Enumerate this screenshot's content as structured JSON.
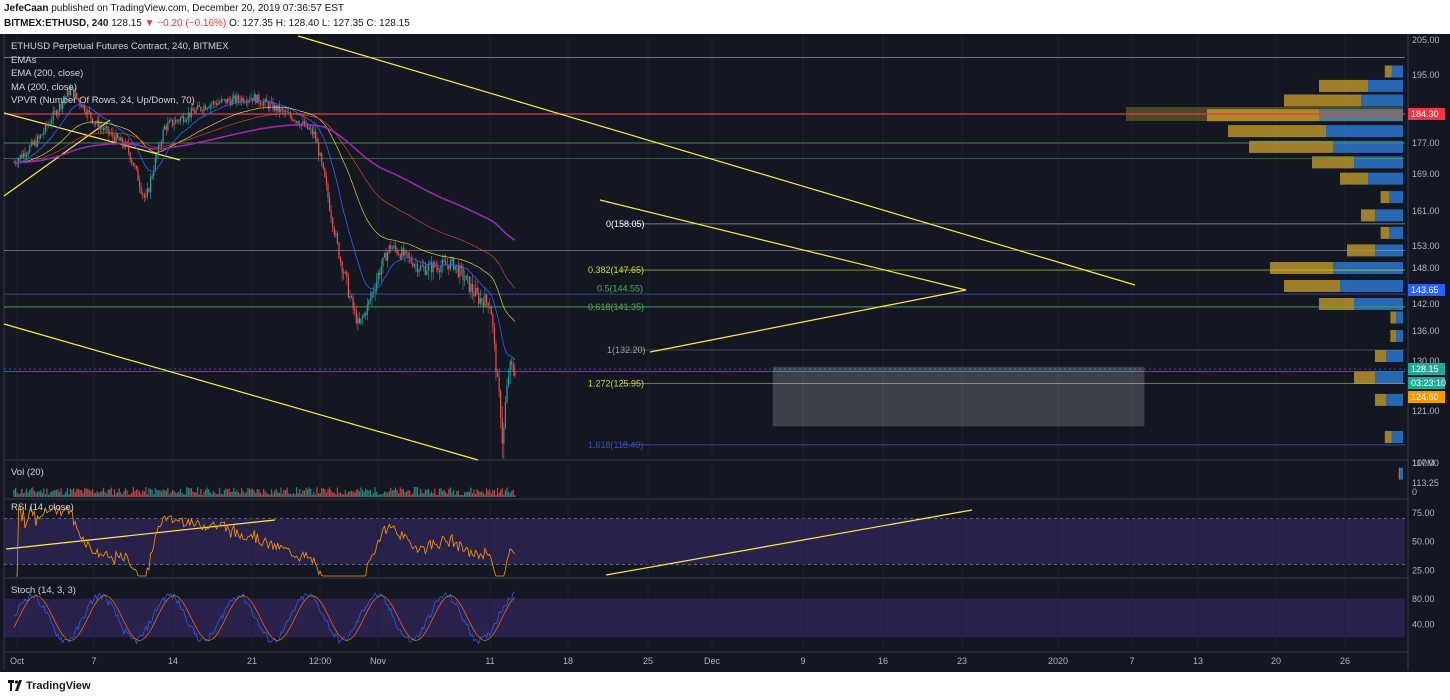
{
  "header": {
    "author": "JefeCaan",
    "published_text": "published on TradingView.com, December 20, 2019 07:36:57 EST",
    "symbol": "BITMEX:ETHUSD, 240",
    "last": "128.15",
    "change_arrow": "▼",
    "change": "−0.20 (−0.16%)",
    "ohlc_o": "O: 127.35",
    "ohlc_h": "H: 128.40",
    "ohlc_l": "L: 127.35",
    "ohlc_c": "C: 128.15"
  },
  "main_legend": [
    "ETHUSD Perpetual Futures Contract, 240, BITMEX",
    "EMAs",
    "EMA (200, close)",
    "MA (200, close)",
    "VPVR (Number Of Rows, 24, Up/Down, 70)"
  ],
  "price_axis": {
    "ticks": [
      "205.00",
      "195.00",
      "184.30",
      "177.00",
      "169.00",
      "161.00",
      "153.00",
      "148.00",
      "142.00",
      "136.00",
      "130.00",
      "121.00",
      "117.00",
      "113.25"
    ],
    "badges": [
      {
        "text": "184.30",
        "color": "#f23645"
      },
      {
        "text": "143.65",
        "color": "#2962ff"
      },
      {
        "text": "128.15",
        "color": "#26a69a"
      },
      {
        "text": "03:23:10",
        "color": "#26a69a"
      },
      {
        "text": "124.60",
        "color": "#ff9800"
      }
    ]
  },
  "fib_labels": [
    {
      "text": "0(158.05)",
      "color": "#ffffff"
    },
    {
      "text": "0.382(147.65)",
      "color": "#cddc39"
    },
    {
      "text": "0.5(144.55)",
      "color": "#4caf50"
    },
    {
      "text": "0.618(141.35)",
      "color": "#4caf50"
    },
    {
      "text": "1(132.20)",
      "color": "#9e9e9e"
    },
    {
      "text": "1.272(125.95)",
      "color": "#cddc39"
    },
    {
      "text": "1.618(118.40)",
      "color": "#3f51b5"
    }
  ],
  "volume_panel": {
    "legend": "Vol (20)",
    "ticks": [
      "100M",
      "0"
    ]
  },
  "rsi_panel": {
    "legend": "RSI (14, close)",
    "ticks": [
      "75.00",
      "50.00",
      "25.00"
    ]
  },
  "stoch_panel": {
    "legend": "Stoch (14, 3, 3)",
    "ticks": [
      "80.00",
      "40.00"
    ]
  },
  "time_axis": [
    "Oct",
    "7",
    "14",
    "21",
    "12:00",
    "Nov",
    "11",
    "18",
    "25",
    "Dec",
    "9",
    "16",
    "23",
    "2020",
    "7",
    "13",
    "20",
    "26"
  ],
  "footer": {
    "brand": "TradingView"
  },
  "chart_data": {
    "type": "candlestick",
    "title": "ETHUSD Perpetual Futures Contract, 240, BITMEX",
    "ylim": [
      113.25,
      205
    ],
    "key_levels": [
      184.3,
      177.0,
      158.05,
      153.0,
      143.65,
      141.35,
      132.2,
      128.15,
      118.4
    ],
    "price_path": [
      {
        "t": "Oct 1",
        "p": 172
      },
      {
        "t": "Oct 5",
        "p": 178
      },
      {
        "t": "Oct 10",
        "p": 191
      },
      {
        "t": "Oct 14",
        "p": 182
      },
      {
        "t": "Oct 19",
        "p": 176
      },
      {
        "t": "Oct 22",
        "p": 163
      },
      {
        "t": "Oct 25",
        "p": 181
      },
      {
        "t": "Nov 1",
        "p": 187
      },
      {
        "t": "Nov 8",
        "p": 189
      },
      {
        "t": "Nov 15",
        "p": 183
      },
      {
        "t": "Nov 18",
        "p": 179
      },
      {
        "t": "Nov 22",
        "p": 150
      },
      {
        "t": "Nov 25",
        "p": 137
      },
      {
        "t": "Nov 30",
        "p": 153
      },
      {
        "t": "Dec 5",
        "p": 148
      },
      {
        "t": "Dec 10",
        "p": 149
      },
      {
        "t": "Dec 14",
        "p": 143
      },
      {
        "t": "Dec 16",
        "p": 142
      },
      {
        "t": "Dec 17",
        "p": 127
      },
      {
        "t": "Dec 18",
        "p": 118
      },
      {
        "t": "Dec 19",
        "p": 129
      },
      {
        "t": "Dec 20",
        "p": 128.15
      }
    ],
    "vpvr_up_down": [
      {
        "price": 196,
        "up": 0.08,
        "down": 0.05
      },
      {
        "price": 192,
        "up": 0.25,
        "down": 0.35
      },
      {
        "price": 188,
        "up": 0.3,
        "down": 0.55
      },
      {
        "price": 184,
        "up": 0.6,
        "down": 0.8
      },
      {
        "price": 180,
        "up": 0.55,
        "down": 0.7
      },
      {
        "price": 176,
        "up": 0.5,
        "down": 0.6
      },
      {
        "price": 172,
        "up": 0.35,
        "down": 0.3
      },
      {
        "price": 168,
        "up": 0.25,
        "down": 0.2
      },
      {
        "price": 164,
        "up": 0.1,
        "down": 0.06
      },
      {
        "price": 160,
        "up": 0.2,
        "down": 0.1
      },
      {
        "price": 156,
        "up": 0.1,
        "down": 0.06
      },
      {
        "price": 152,
        "up": 0.2,
        "down": 0.2
      },
      {
        "price": 148,
        "up": 0.5,
        "down": 0.45
      },
      {
        "price": 145,
        "up": 0.45,
        "down": 0.4
      },
      {
        "price": 142,
        "up": 0.35,
        "down": 0.25
      },
      {
        "price": 139,
        "up": 0.05,
        "down": 0.04
      },
      {
        "price": 135,
        "up": 0.05,
        "down": 0.04
      },
      {
        "price": 131,
        "up": 0.12,
        "down": 0.08
      },
      {
        "price": 127,
        "up": 0.2,
        "down": 0.15
      },
      {
        "price": 123,
        "up": 0.12,
        "down": 0.08
      },
      {
        "price": 119,
        "up": 0.08,
        "down": 0.05
      },
      {
        "price": 115,
        "up": 0.02,
        "down": 0.01
      }
    ]
  }
}
